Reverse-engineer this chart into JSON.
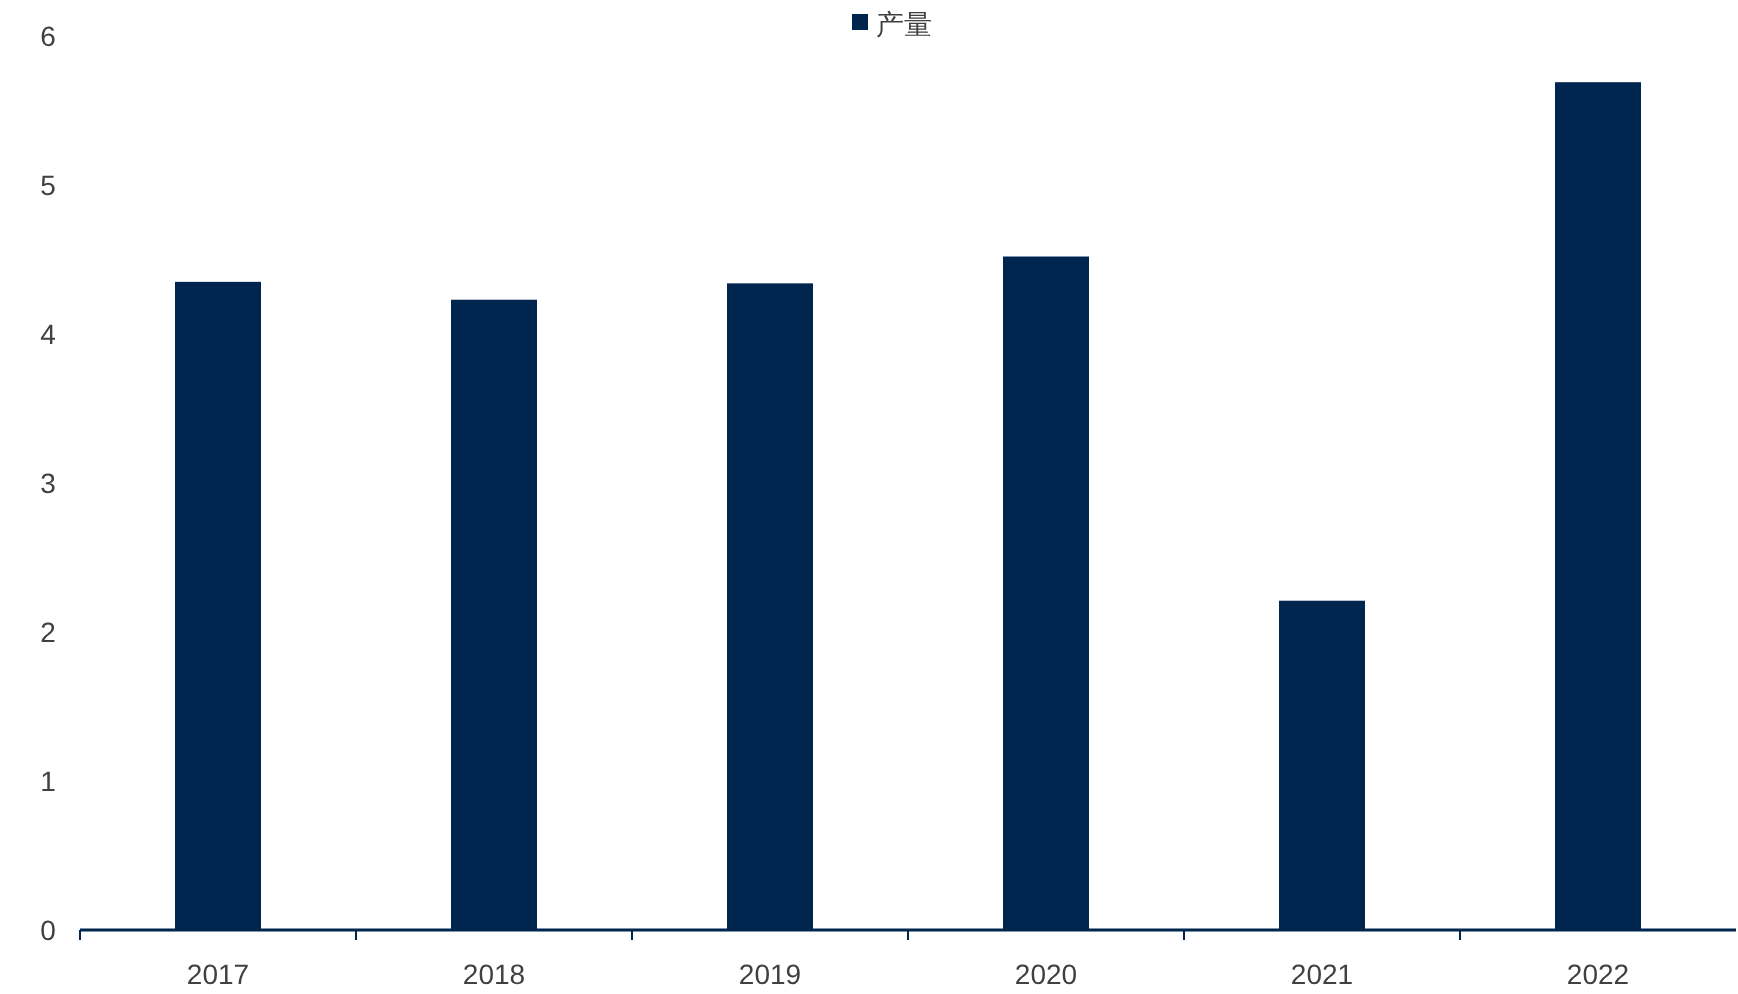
{
  "chart_data": {
    "type": "bar",
    "categories": [
      "2017",
      "2018",
      "2019",
      "2020",
      "2021",
      "2022"
    ],
    "series": [
      {
        "name": "产量",
        "color": "#00264f",
        "values": [
          4.35,
          4.23,
          4.34,
          4.52,
          2.21,
          5.69
        ]
      }
    ],
    "ylim": [
      0,
      6
    ],
    "yticks": [
      0,
      1,
      2,
      3,
      4,
      5,
      6
    ],
    "grid": false,
    "legend": "top"
  }
}
